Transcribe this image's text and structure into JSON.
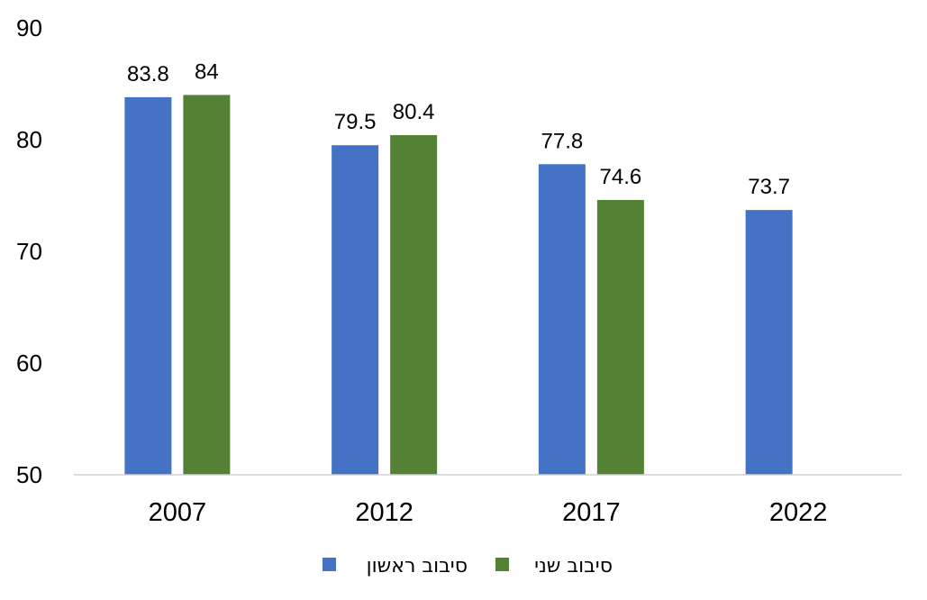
{
  "chart_data": {
    "type": "bar",
    "title": "",
    "xlabel": "",
    "ylabel": "",
    "categories": [
      "2007",
      "2012",
      "2017",
      "2022"
    ],
    "ylim": [
      50,
      90
    ],
    "yticks": [
      50,
      60,
      70,
      80,
      90
    ],
    "grid": false,
    "legend_position": "bottom",
    "series": [
      {
        "name": "סיבוב ראשון",
        "color": "#4472C4",
        "values": [
          83.8,
          79.5,
          77.8,
          73.7
        ],
        "labels": [
          "83.8",
          "79.5",
          "77.8",
          "73.7"
        ]
      },
      {
        "name": "סיבוב שני",
        "color": "#548235",
        "values": [
          84,
          80.4,
          74.6,
          null
        ],
        "labels": [
          "84",
          "80.4",
          "74.6",
          ""
        ]
      }
    ]
  }
}
